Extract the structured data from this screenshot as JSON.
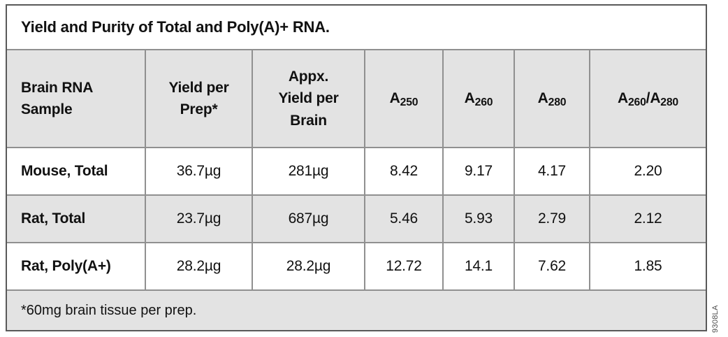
{
  "figure_code": "9308LA",
  "colors": {
    "shaded_fill": "#e3e3e3",
    "white_fill": "#ffffff",
    "grid_line": "#909090",
    "outer_border": "#595959",
    "text": "#111111"
  },
  "header_display": [
    {
      "lines": [
        "Brain RNA",
        "Sample"
      ]
    },
    {
      "lines": [
        "Yield per",
        "Prep*"
      ]
    },
    {
      "lines": [
        "Appx.",
        "Yield per",
        "Brain"
      ]
    },
    {
      "base": "A",
      "sub": "250"
    },
    {
      "base": "A",
      "sub": "260"
    },
    {
      "base": "A",
      "sub": "280"
    },
    {
      "base1": "A",
      "sub1": "260",
      "slash": "/",
      "base2": "A",
      "sub2": "280"
    }
  ],
  "chart_data": {
    "type": "table",
    "title": "Yield and Purity of Total and Poly(A)+ RNA.",
    "columns": [
      "Brain RNA Sample",
      "Yield per Prep*",
      "Appx. Yield per Brain",
      "A250",
      "A260",
      "A280",
      "A260/A280"
    ],
    "rows": [
      [
        "Mouse, Total",
        "36.7µg",
        "281µg",
        "8.42",
        "9.17",
        "4.17",
        "2.20"
      ],
      [
        "Rat, Total",
        "23.7µg",
        "687µg",
        "5.46",
        "5.93",
        "2.79",
        "2.12"
      ],
      [
        "Rat, Poly(A+)",
        "28.2µg",
        "28.2µg",
        "12.72",
        "14.1",
        "7.62",
        "1.85"
      ]
    ],
    "footnote": "*60mg brain tissue per prep."
  }
}
